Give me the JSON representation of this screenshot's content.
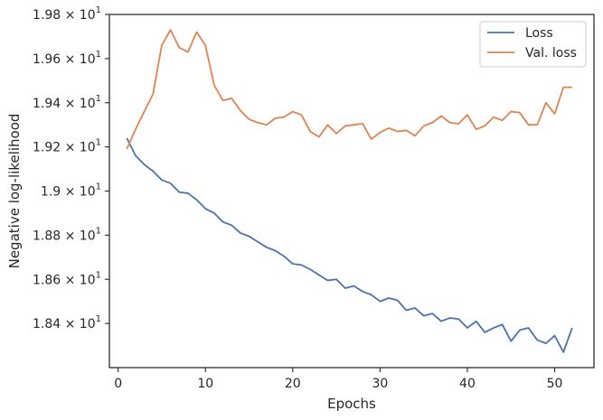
{
  "chart_data": {
    "type": "line",
    "title": "",
    "xlabel": "Epochs",
    "ylabel": "Negative log-likelihood",
    "xlim": [
      -1,
      54.5
    ],
    "ylim": [
      18.2,
      19.8
    ],
    "x_ticks": [
      0,
      10,
      20,
      30,
      40,
      50
    ],
    "y_ticks": [
      {
        "value": 18.4,
        "mantissa": "1.84",
        "base": "10",
        "exp": "1"
      },
      {
        "value": 18.6,
        "mantissa": "1.86",
        "base": "10",
        "exp": "1"
      },
      {
        "value": 18.8,
        "mantissa": "1.88",
        "base": "10",
        "exp": "1"
      },
      {
        "value": 19.0,
        "mantissa": "1.9",
        "base": "10",
        "exp": "1"
      },
      {
        "value": 19.2,
        "mantissa": "1.92",
        "base": "10",
        "exp": "1"
      },
      {
        "value": 19.4,
        "mantissa": "1.94",
        "base": "10",
        "exp": "1"
      },
      {
        "value": 19.6,
        "mantissa": "1.96",
        "base": "10",
        "exp": "1"
      },
      {
        "value": 19.8,
        "mantissa": "1.98",
        "base": "10",
        "exp": "1"
      }
    ],
    "grid": false,
    "legend_position": "top-right",
    "x": [
      1,
      2,
      3,
      4,
      5,
      6,
      7,
      8,
      9,
      10,
      11,
      12,
      13,
      14,
      15,
      16,
      17,
      18,
      19,
      20,
      21,
      22,
      23,
      24,
      25,
      26,
      27,
      28,
      29,
      30,
      31,
      32,
      33,
      34,
      35,
      36,
      37,
      38,
      39,
      40,
      41,
      42,
      43,
      44,
      45,
      46,
      47,
      48,
      49,
      50,
      51,
      52
    ],
    "series": [
      {
        "name": "Loss",
        "color": "#4c72b0",
        "values": [
          19.24,
          19.16,
          19.12,
          19.09,
          19.05,
          19.035,
          18.995,
          18.99,
          18.96,
          18.92,
          18.9,
          18.86,
          18.845,
          18.81,
          18.795,
          18.77,
          18.745,
          18.73,
          18.705,
          18.67,
          18.665,
          18.645,
          18.62,
          18.595,
          18.6,
          18.56,
          18.57,
          18.545,
          18.53,
          18.5,
          18.515,
          18.505,
          18.46,
          18.47,
          18.435,
          18.445,
          18.41,
          18.425,
          18.42,
          18.38,
          18.41,
          18.36,
          18.38,
          18.395,
          18.32,
          18.37,
          18.38,
          18.325,
          18.31,
          18.345,
          18.27,
          18.38
        ]
      },
      {
        "name": "Val. loss",
        "color": "#dd8452",
        "values": [
          19.19,
          19.28,
          19.36,
          19.44,
          19.66,
          19.73,
          19.65,
          19.63,
          19.72,
          19.66,
          19.48,
          19.41,
          19.42,
          19.365,
          19.325,
          19.31,
          19.3,
          19.33,
          19.335,
          19.36,
          19.345,
          19.27,
          19.245,
          19.3,
          19.26,
          19.295,
          19.3,
          19.305,
          19.235,
          19.265,
          19.285,
          19.27,
          19.275,
          19.25,
          19.295,
          19.31,
          19.34,
          19.31,
          19.305,
          19.345,
          19.28,
          19.295,
          19.335,
          19.32,
          19.36,
          19.355,
          19.3,
          19.3,
          19.4,
          19.35,
          19.47,
          19.47
        ]
      }
    ]
  }
}
